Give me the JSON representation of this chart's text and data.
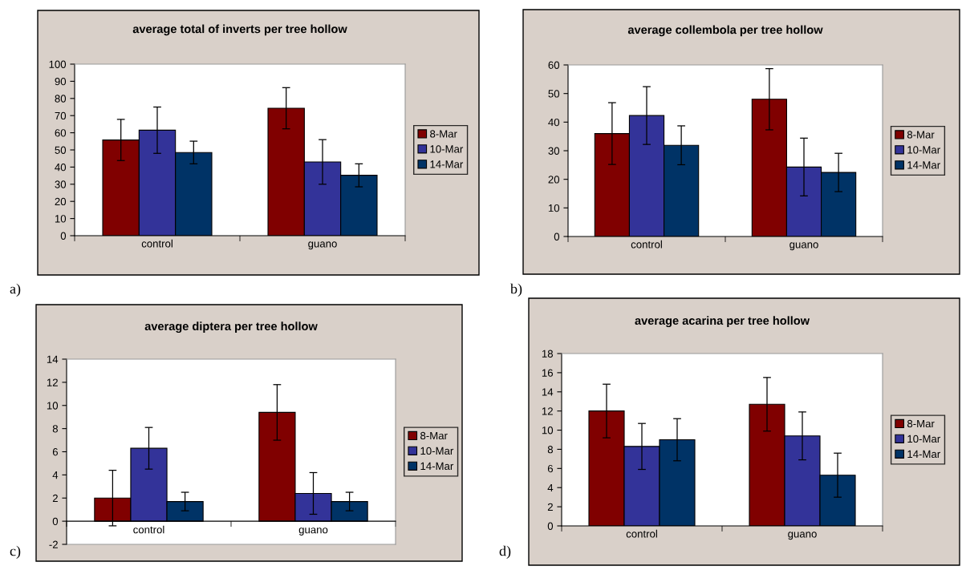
{
  "chart_data": [
    {
      "type": "bar",
      "title": "average total of inverts per tree hollow",
      "categories": [
        "control",
        "guano"
      ],
      "ylim": [
        0,
        100
      ],
      "yticks": [
        0,
        10,
        20,
        30,
        40,
        50,
        60,
        70,
        80,
        90,
        100
      ],
      "grid": false,
      "legend": "right",
      "annotations": [
        "a)"
      ],
      "series": [
        {
          "name": "8-Mar",
          "color": "#800000",
          "values": [
            55.8,
            74.3
          ],
          "errors": [
            12,
            12
          ]
        },
        {
          "name": "10-Mar",
          "color": "#333399",
          "values": [
            61.5,
            43
          ],
          "errors": [
            13.5,
            13
          ]
        },
        {
          "name": "14-Mar",
          "color": "#003366",
          "values": [
            48.5,
            35.2
          ],
          "errors": [
            6.6,
            6.7
          ]
        }
      ]
    },
    {
      "type": "bar",
      "title": "average collembola per tree hollow",
      "categories": [
        "control",
        "guano"
      ],
      "ylim": [
        0,
        60
      ],
      "yticks": [
        0,
        10,
        20,
        30,
        40,
        50,
        60
      ],
      "grid": false,
      "legend": "right",
      "annotations": [
        "b)"
      ],
      "series": [
        {
          "name": "8-Mar",
          "color": "#800000",
          "values": [
            36,
            48
          ],
          "errors": [
            10.8,
            10.7
          ]
        },
        {
          "name": "10-Mar",
          "color": "#333399",
          "values": [
            42.3,
            24.3
          ],
          "errors": [
            10.1,
            10.1
          ]
        },
        {
          "name": "14-Mar",
          "color": "#003366",
          "values": [
            31.9,
            22.4
          ],
          "errors": [
            6.8,
            6.7
          ]
        }
      ]
    },
    {
      "type": "bar",
      "title": "average diptera per tree hollow",
      "categories": [
        "control",
        "guano"
      ],
      "ylim": [
        -2,
        14
      ],
      "yticks": [
        -2,
        0,
        2,
        4,
        6,
        8,
        10,
        12,
        14
      ],
      "grid": false,
      "legend": "right",
      "annotations": [
        "c)"
      ],
      "series": [
        {
          "name": "8-Mar",
          "color": "#800000",
          "values": [
            2,
            9.4
          ],
          "errors": [
            2.4,
            2.4
          ]
        },
        {
          "name": "10-Mar",
          "color": "#333399",
          "values": [
            6.3,
            2.4
          ],
          "errors": [
            1.8,
            1.8
          ]
        },
        {
          "name": "14-Mar",
          "color": "#003366",
          "values": [
            1.7,
            1.7
          ],
          "errors": [
            0.8,
            0.8
          ]
        }
      ]
    },
    {
      "type": "bar",
      "title": "average acarina per tree hollow",
      "categories": [
        "control",
        "guano"
      ],
      "ylim": [
        0,
        18
      ],
      "yticks": [
        0,
        2,
        4,
        6,
        8,
        10,
        12,
        14,
        16,
        18
      ],
      "grid": false,
      "legend": "right",
      "annotations": [
        "d)"
      ],
      "series": [
        {
          "name": "8-Mar",
          "color": "#800000",
          "values": [
            12,
            12.7
          ],
          "errors": [
            2.8,
            2.8
          ]
        },
        {
          "name": "10-Mar",
          "color": "#333399",
          "values": [
            8.3,
            9.4
          ],
          "errors": [
            2.4,
            2.5
          ]
        },
        {
          "name": "14-Mar",
          "color": "#003366",
          "values": [
            9,
            5.3
          ],
          "errors": [
            2.2,
            2.3
          ]
        }
      ]
    }
  ]
}
